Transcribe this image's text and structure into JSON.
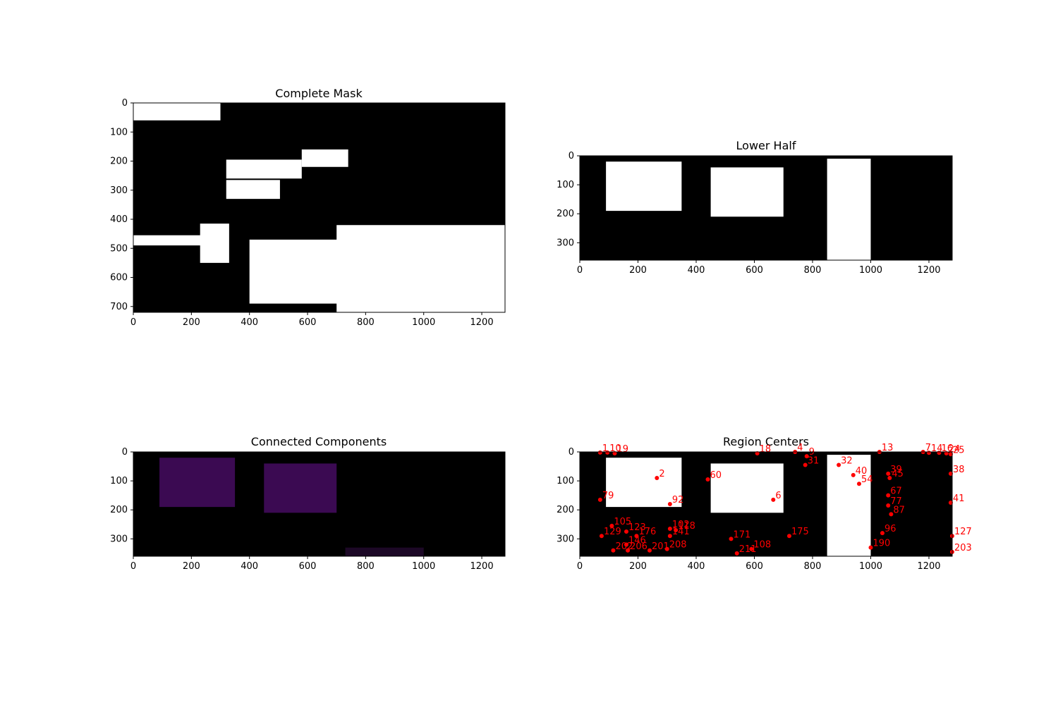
{
  "colors": {
    "background": "#ffffff",
    "mask_bg": "#000000",
    "mask_fg": "#ffffff",
    "marker": "#ff0000",
    "component_purple": "#3b0a52",
    "component_dark": "#1c0826"
  },
  "chart_data": [
    {
      "type": "heatmap",
      "title": "Complete Mask",
      "image_size": [
        1280,
        720
      ],
      "xlim": [
        0,
        1280
      ],
      "ylim": [
        720,
        0
      ],
      "x_ticks": [
        0,
        200,
        400,
        600,
        800,
        1000,
        1200
      ],
      "y_ticks": [
        0,
        100,
        200,
        300,
        400,
        500,
        600,
        700
      ],
      "regions": [
        {
          "shape": "rect",
          "x": [
            320,
            580
          ],
          "y": [
            195,
            260
          ]
        },
        {
          "shape": "rect",
          "x": [
            320,
            505
          ],
          "y": [
            265,
            330
          ]
        },
        {
          "shape": "rect",
          "x": [
            230,
            330
          ],
          "y": [
            415,
            550
          ]
        },
        {
          "shape": "rect",
          "x": [
            0,
            240
          ],
          "y": [
            455,
            490
          ]
        },
        {
          "shape": "rect",
          "x": [
            400,
            750
          ],
          "y": [
            470,
            690
          ]
        },
        {
          "shape": "rect",
          "x": [
            580,
            740
          ],
          "y": [
            160,
            220
          ]
        },
        {
          "shape": "rect",
          "x": [
            0,
            300
          ],
          "y": [
            0,
            60
          ]
        },
        {
          "shape": "rect",
          "x": [
            700,
            1280
          ],
          "y": [
            420,
            720
          ]
        }
      ]
    },
    {
      "type": "heatmap",
      "title": "Lower Half",
      "image_size": [
        1280,
        360
      ],
      "xlim": [
        0,
        1280
      ],
      "ylim": [
        360,
        0
      ],
      "x_ticks": [
        0,
        200,
        400,
        600,
        800,
        1000,
        1200
      ],
      "y_ticks": [
        0,
        100,
        200,
        300
      ],
      "regions": [
        {
          "shape": "rect",
          "x": [
            90,
            350
          ],
          "y": [
            20,
            190
          ]
        },
        {
          "shape": "rect",
          "x": [
            450,
            700
          ],
          "y": [
            40,
            210
          ]
        },
        {
          "shape": "rect",
          "x": [
            850,
            1000
          ],
          "y": [
            10,
            360
          ]
        }
      ]
    },
    {
      "type": "heatmap",
      "title": "Connected Components",
      "image_size": [
        1280,
        360
      ],
      "xlim": [
        0,
        1280
      ],
      "ylim": [
        360,
        0
      ],
      "x_ticks": [
        0,
        200,
        400,
        600,
        800,
        1000,
        1200
      ],
      "y_ticks": [
        0,
        100,
        200,
        300
      ],
      "regions": [
        {
          "shape": "rect",
          "x": [
            90,
            350
          ],
          "y": [
            20,
            190
          ]
        },
        {
          "shape": "rect",
          "x": [
            450,
            700
          ],
          "y": [
            40,
            210
          ]
        },
        {
          "shape": "rect",
          "x": [
            730,
            1000
          ],
          "y": [
            330,
            360
          ]
        }
      ]
    },
    {
      "type": "scatter",
      "title": "Region Centers",
      "image_size": [
        1280,
        360
      ],
      "xlim": [
        0,
        1280
      ],
      "ylim": [
        360,
        0
      ],
      "x_ticks": [
        0,
        200,
        400,
        600,
        800,
        1000,
        1200
      ],
      "y_ticks": [
        0,
        100,
        200,
        300
      ],
      "points": [
        {
          "label": "1",
          "x": 70,
          "y": 2
        },
        {
          "label": "10",
          "x": 95,
          "y": 2
        },
        {
          "label": "19",
          "x": 120,
          "y": 5
        },
        {
          "label": "18",
          "x": 610,
          "y": 5
        },
        {
          "label": "4",
          "x": 740,
          "y": 0
        },
        {
          "label": "9",
          "x": 780,
          "y": 15
        },
        {
          "label": "31",
          "x": 775,
          "y": 45
        },
        {
          "label": "32",
          "x": 890,
          "y": 45
        },
        {
          "label": "13",
          "x": 1030,
          "y": 0
        },
        {
          "label": "7",
          "x": 1180,
          "y": 0
        },
        {
          "label": "14",
          "x": 1200,
          "y": 3
        },
        {
          "label": "16",
          "x": 1235,
          "y": 3
        },
        {
          "label": "24",
          "x": 1260,
          "y": 5
        },
        {
          "label": "25",
          "x": 1275,
          "y": 8
        },
        {
          "label": "38",
          "x": 1275,
          "y": 75
        },
        {
          "label": "41",
          "x": 1275,
          "y": 175
        },
        {
          "label": "2",
          "x": 265,
          "y": 90
        },
        {
          "label": "6",
          "x": 665,
          "y": 165
        },
        {
          "label": "40",
          "x": 940,
          "y": 80
        },
        {
          "label": "39",
          "x": 1060,
          "y": 75
        },
        {
          "label": "45",
          "x": 1065,
          "y": 90
        },
        {
          "label": "54",
          "x": 960,
          "y": 110
        },
        {
          "label": "67",
          "x": 1060,
          "y": 150
        },
        {
          "label": "77",
          "x": 1060,
          "y": 185
        },
        {
          "label": "87",
          "x": 1070,
          "y": 215
        },
        {
          "label": "96",
          "x": 1040,
          "y": 280
        },
        {
          "label": "79",
          "x": 70,
          "y": 165
        },
        {
          "label": "92",
          "x": 310,
          "y": 180
        },
        {
          "label": "105",
          "x": 110,
          "y": 255
        },
        {
          "label": "123",
          "x": 160,
          "y": 275
        },
        {
          "label": "129",
          "x": 75,
          "y": 290
        },
        {
          "label": "176",
          "x": 195,
          "y": 290
        },
        {
          "label": "102",
          "x": 310,
          "y": 265
        },
        {
          "label": "118",
          "x": 330,
          "y": 270
        },
        {
          "label": "141",
          "x": 310,
          "y": 290
        },
        {
          "label": "146",
          "x": 160,
          "y": 320
        },
        {
          "label": "202",
          "x": 115,
          "y": 340
        },
        {
          "label": "206",
          "x": 165,
          "y": 340
        },
        {
          "label": "201",
          "x": 240,
          "y": 340
        },
        {
          "label": "208",
          "x": 300,
          "y": 335
        },
        {
          "label": "190",
          "x": 1000,
          "y": 330
        },
        {
          "label": "127",
          "x": 1280,
          "y": 290
        },
        {
          "label": "203",
          "x": 1280,
          "y": 345
        },
        {
          "label": "108",
          "x": 590,
          "y": 335
        },
        {
          "label": "211",
          "x": 540,
          "y": 350
        },
        {
          "label": "171",
          "x": 520,
          "y": 300
        },
        {
          "label": "175",
          "x": 720,
          "y": 290
        },
        {
          "label": "60",
          "x": 440,
          "y": 95
        }
      ]
    }
  ]
}
